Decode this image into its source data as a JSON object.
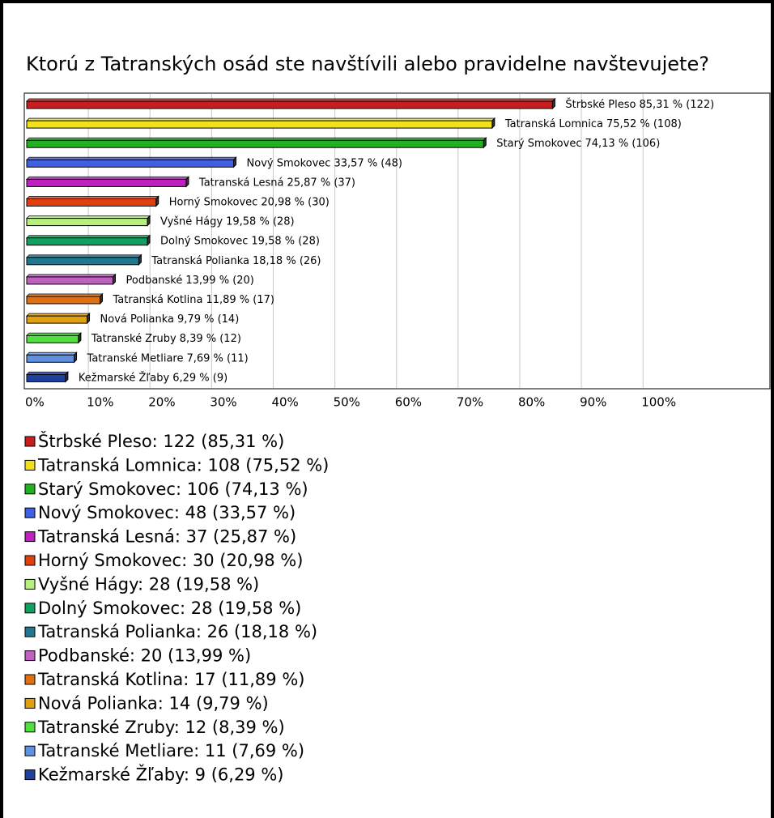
{
  "chart_data": {
    "type": "bar",
    "orientation": "horizontal",
    "title": "Ktorú z Tatranských osád ste navštívili alebo pravidelne navštevujete?",
    "categories": [
      "Štrbské Pleso",
      "Tatranská Lomnica",
      "Starý Smokovec",
      "Nový Smokovec",
      "Tatranská Lesná",
      "Horný Smokovec",
      "Vyšné Hágy",
      "Dolný Smokovec",
      "Tatranská Polianka",
      "Podbanské",
      "Tatranská Kotlina",
      "Nová Polianka",
      "Tatranské Zruby",
      "Tatranské Metliare",
      "Kežmarské Žľaby"
    ],
    "values": [
      85.31,
      75.52,
      74.13,
      33.57,
      25.87,
      20.98,
      19.58,
      19.58,
      18.18,
      13.99,
      11.89,
      9.79,
      8.39,
      7.69,
      6.29
    ],
    "value_labels": [
      "85,31 % (122)",
      "75,52 % (108)",
      "74,13 % (106)",
      "33,57 % (48)",
      "25,87 % (37)",
      "20,98 % (30)",
      "19,58 % (28)",
      "19,58 % (28)",
      "18,18 % (26)",
      "13,99 % (20)",
      "11,89 % (17)",
      "9,79 % (14)",
      "8,39 % (12)",
      "7,69 % (11)",
      "6,29 % (9)"
    ],
    "legend": [
      "Štrbské Pleso: 122 (85,31 %)",
      "Tatranská Lomnica: 108 (75,52 %)",
      "Starý Smokovec: 106 (74,13 %)",
      "Nový Smokovec: 48 (33,57 %)",
      "Tatranská Lesná: 37 (25,87 %)",
      "Horný Smokovec: 30 (20,98 %)",
      "Vyšné Hágy: 28 (19,58 %)",
      "Dolný Smokovec: 28 (19,58 %)",
      "Tatranská Polianka: 26 (18,18 %)",
      "Podbanské: 20 (13,99 %)",
      "Tatranská Kotlina: 17 (11,89 %)",
      "Nová Polianka: 14 (9,79 %)",
      "Tatranské Zruby: 12 (8,39 %)",
      "Tatranské Metliare: 11 (7,69 %)",
      "Kežmarské Žľaby: 9 (6,29 %)"
    ],
    "colors": [
      "#c81e1e",
      "#f0e020",
      "#20b020",
      "#4060e0",
      "#c020c0",
      "#e04010",
      "#b8f080",
      "#10a060",
      "#207890",
      "#c060c0",
      "#e07010",
      "#e0a010",
      "#50e040",
      "#6090e0",
      "#2040a0"
    ],
    "xlim": [
      0,
      120.6
    ],
    "xticks": [
      {
        "value": 0,
        "label": "0%"
      },
      {
        "value": 10,
        "label": "10%"
      },
      {
        "value": 20,
        "label": "20%"
      },
      {
        "value": 30,
        "label": "30%"
      },
      {
        "value": 40,
        "label": "40%"
      },
      {
        "value": 50,
        "label": "50%"
      },
      {
        "value": 60,
        "label": "60%"
      },
      {
        "value": 70,
        "label": "70%"
      },
      {
        "value": 80,
        "label": "80%"
      },
      {
        "value": 90,
        "label": "90%"
      },
      {
        "value": 100,
        "label": "100%"
      }
    ],
    "grid": true
  }
}
